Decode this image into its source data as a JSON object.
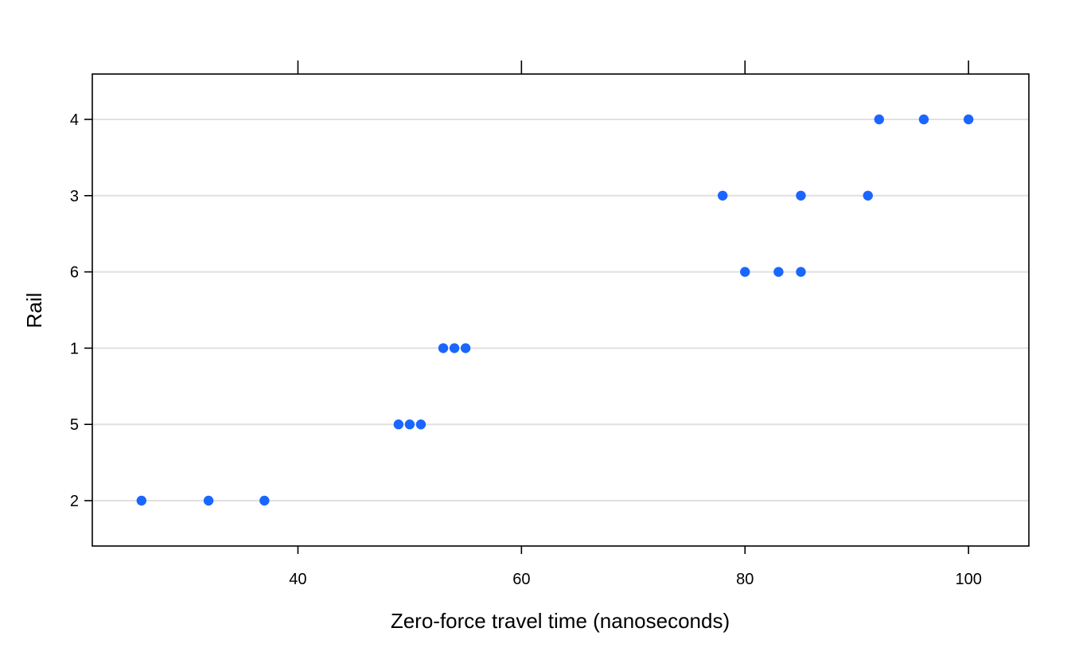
{
  "chart_data": {
    "type": "scatter",
    "title": "",
    "xlabel": "Zero-force travel time (nanoseconds)",
    "ylabel": "Rail",
    "xlim": [
      21.6,
      105.4
    ],
    "x_ticks": [
      40,
      60,
      80,
      100
    ],
    "x_tick_labels": [
      "40",
      "60",
      "80",
      "100"
    ],
    "categories": [
      "2",
      "5",
      "1",
      "6",
      "3",
      "4"
    ],
    "grid": true,
    "marker_color": "#1a66ff",
    "grid_color": "#e0e0e0",
    "points": [
      {
        "rail": "2",
        "x": 26
      },
      {
        "rail": "2",
        "x": 32
      },
      {
        "rail": "2",
        "x": 37
      },
      {
        "rail": "5",
        "x": 49
      },
      {
        "rail": "5",
        "x": 50
      },
      {
        "rail": "5",
        "x": 51
      },
      {
        "rail": "1",
        "x": 53
      },
      {
        "rail": "1",
        "x": 54
      },
      {
        "rail": "1",
        "x": 55
      },
      {
        "rail": "6",
        "x": 80
      },
      {
        "rail": "6",
        "x": 83
      },
      {
        "rail": "6",
        "x": 85
      },
      {
        "rail": "3",
        "x": 78
      },
      {
        "rail": "3",
        "x": 85
      },
      {
        "rail": "3",
        "x": 91
      },
      {
        "rail": "4",
        "x": 92
      },
      {
        "rail": "4",
        "x": 96
      },
      {
        "rail": "4",
        "x": 100
      }
    ]
  }
}
